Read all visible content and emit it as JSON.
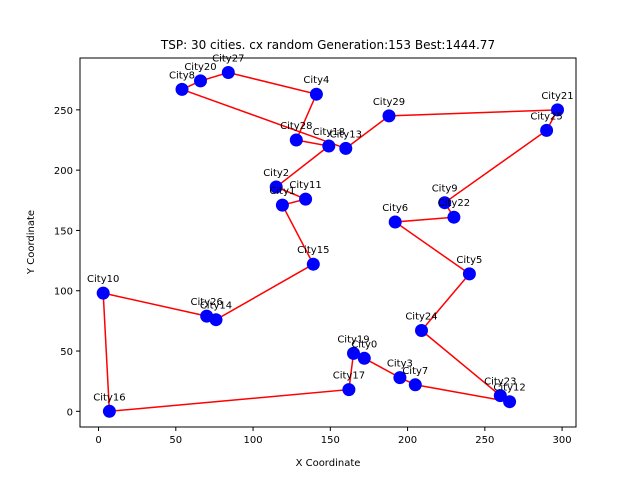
{
  "chart_data": {
    "type": "scatter",
    "title": "TSP: 30 cities. cx random Generation:153 Best:1444.77",
    "xlabel": "X Coordinate",
    "ylabel": "Y Coordinate",
    "xlim": [
      -12,
      309
    ],
    "ylim": [
      -13,
      293
    ],
    "xticks": [
      0,
      50,
      100,
      150,
      200,
      250,
      300
    ],
    "yticks": [
      0,
      50,
      100,
      150,
      200,
      250
    ],
    "colors": {
      "route": "#ff0000",
      "city": "#0000ff"
    },
    "cities": [
      {
        "name": "City0",
        "x": 172,
        "y": 44
      },
      {
        "name": "City1",
        "x": 119,
        "y": 171
      },
      {
        "name": "City2",
        "x": 115,
        "y": 186
      },
      {
        "name": "City3",
        "x": 195,
        "y": 28
      },
      {
        "name": "City4",
        "x": 141,
        "y": 263
      },
      {
        "name": "City5",
        "x": 240,
        "y": 114
      },
      {
        "name": "City6",
        "x": 192,
        "y": 157
      },
      {
        "name": "City7",
        "x": 205,
        "y": 22
      },
      {
        "name": "City8",
        "x": 54,
        "y": 267
      },
      {
        "name": "City9",
        "x": 224,
        "y": 173
      },
      {
        "name": "City10",
        "x": 3,
        "y": 98
      },
      {
        "name": "City11",
        "x": 134,
        "y": 176
      },
      {
        "name": "City12",
        "x": 266,
        "y": 8
      },
      {
        "name": "City13",
        "x": 160,
        "y": 218
      },
      {
        "name": "City14",
        "x": 76,
        "y": 76
      },
      {
        "name": "City15",
        "x": 139,
        "y": 122
      },
      {
        "name": "City16",
        "x": 7,
        "y": 0
      },
      {
        "name": "City17",
        "x": 162,
        "y": 18
      },
      {
        "name": "City18",
        "x": 149,
        "y": 220
      },
      {
        "name": "City19",
        "x": 165,
        "y": 48
      },
      {
        "name": "City20",
        "x": 66,
        "y": 274
      },
      {
        "name": "City21",
        "x": 297,
        "y": 250
      },
      {
        "name": "City22",
        "x": 230,
        "y": 161
      },
      {
        "name": "City23",
        "x": 260,
        "y": 13
      },
      {
        "name": "City24",
        "x": 209,
        "y": 67
      },
      {
        "name": "City25",
        "x": 290,
        "y": 233
      },
      {
        "name": "City26",
        "x": 70,
        "y": 79
      },
      {
        "name": "City27",
        "x": 84,
        "y": 281
      },
      {
        "name": "City28",
        "x": 128,
        "y": 225
      },
      {
        "name": "City29",
        "x": 188,
        "y": 245
      }
    ],
    "route": [
      16,
      10,
      26,
      14,
      15,
      1,
      11,
      2,
      18,
      28,
      4,
      27,
      20,
      8,
      13,
      29,
      21,
      25,
      9,
      22,
      6,
      5,
      24,
      23,
      12,
      7,
      3,
      0,
      19,
      17,
      16
    ]
  }
}
